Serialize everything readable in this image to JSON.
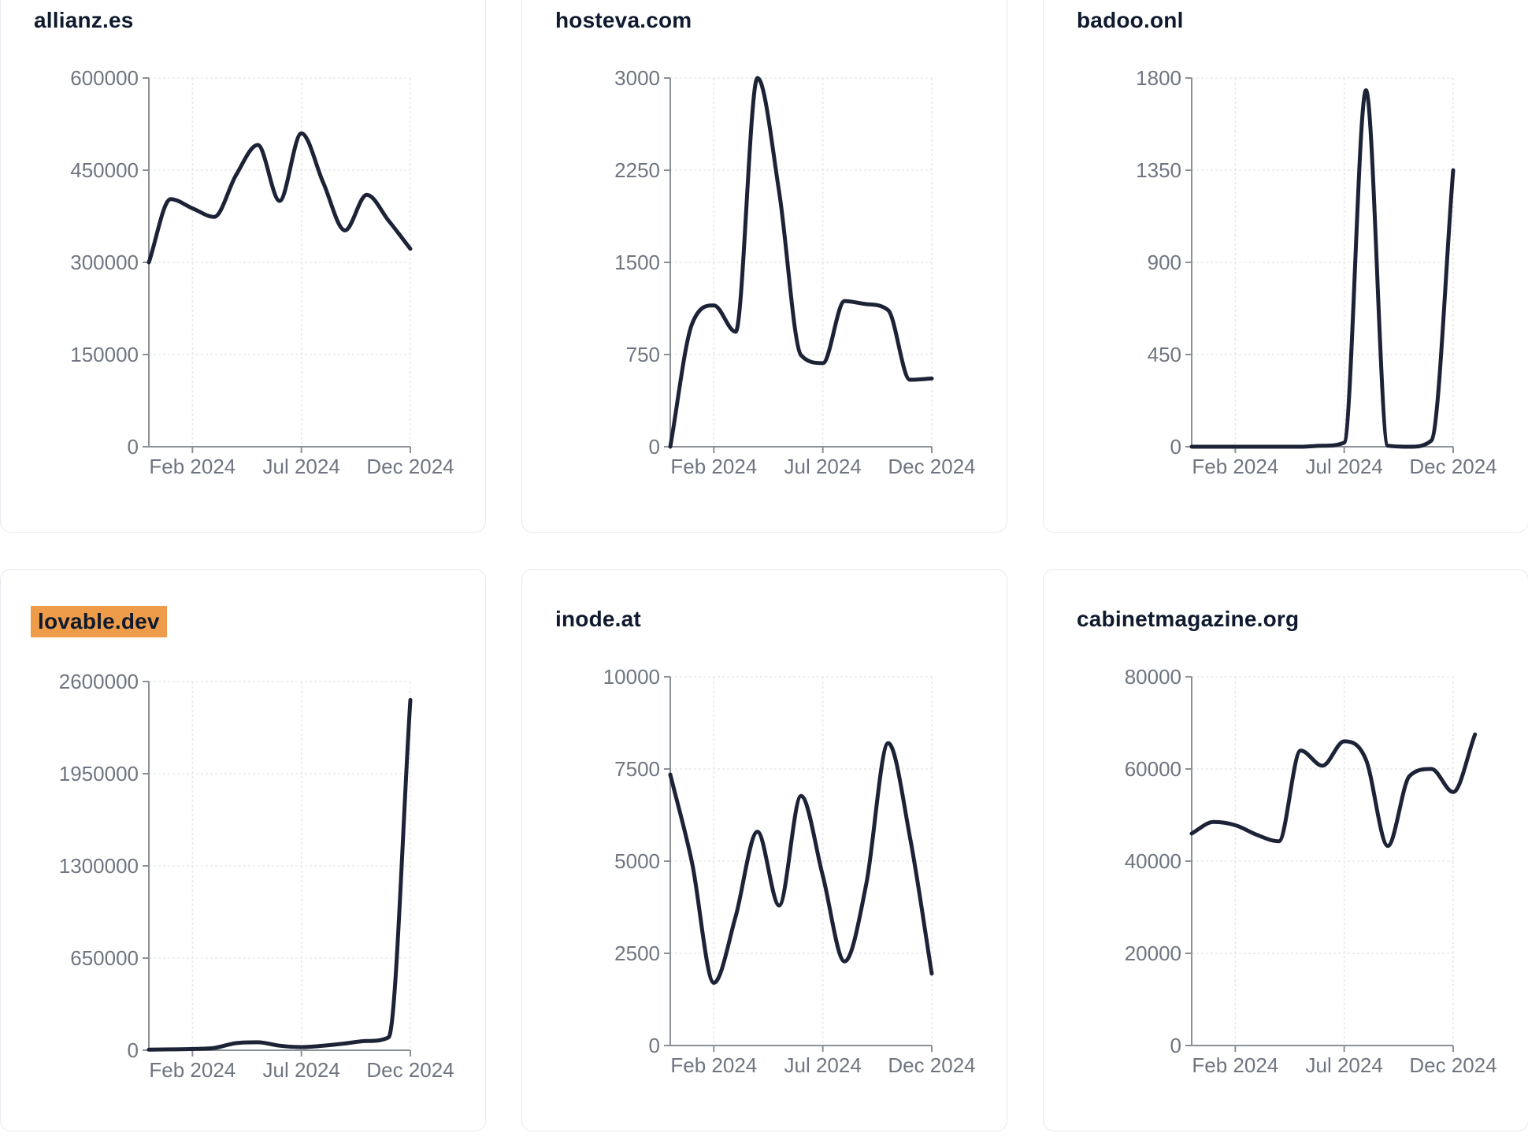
{
  "page": {
    "background": "#ffffff"
  },
  "theme": {
    "line_color": "#1c2337",
    "title_color": "#0f1a2e",
    "axis_color": "#8b9097",
    "tick_label_color": "#6f7580",
    "grid_color": "#e8e8e8",
    "card_border_color": "#e6e9f0",
    "highlight_color": "#ee9c49"
  },
  "chart_data": [
    {
      "type": "line",
      "title": "allianz.es",
      "highlighted": false,
      "x_tick_labels": [
        "Feb 2024",
        "Jul 2024",
        "Dec 2024"
      ],
      "x_tick_indices": [
        2,
        7,
        12
      ],
      "y_ticks": [
        0,
        150000,
        300000,
        450000,
        600000
      ],
      "ylim": [
        0,
        600000
      ],
      "grid": true,
      "values": [
        300000,
        403000,
        388000,
        374000,
        442000,
        491000,
        400000,
        510000,
        430000,
        352000,
        410000,
        368000,
        322000
      ]
    },
    {
      "type": "line",
      "title": "hosteva.com",
      "highlighted": false,
      "x_tick_labels": [
        "Feb 2024",
        "Jul 2024",
        "Dec 2024"
      ],
      "x_tick_indices": [
        2,
        7,
        12
      ],
      "y_ticks": [
        0,
        750,
        1500,
        2250,
        3000
      ],
      "ylim": [
        0,
        3000
      ],
      "grid": true,
      "values": [
        0,
        1000,
        1150,
        935,
        3000,
        2070,
        745,
        680,
        1185,
        1160,
        1110,
        545,
        555
      ]
    },
    {
      "type": "line",
      "title": "badoo.onl",
      "highlighted": false,
      "x_tick_labels": [
        "Feb 2024",
        "Jul 2024",
        "Dec 2024"
      ],
      "x_tick_indices": [
        2,
        7,
        12
      ],
      "y_ticks": [
        0,
        450,
        900,
        1350,
        1800
      ],
      "ylim": [
        0,
        1800
      ],
      "grid": true,
      "values": [
        0,
        0,
        0,
        0,
        0,
        0,
        5,
        20,
        1740,
        5,
        0,
        30,
        1350
      ]
    },
    {
      "type": "line",
      "title": "lovable.dev",
      "highlighted": true,
      "x_tick_labels": [
        "Feb 2024",
        "Jul 2024",
        "Dec 2024"
      ],
      "x_tick_indices": [
        2,
        7,
        12
      ],
      "y_ticks": [
        0,
        650000,
        1300000,
        1950000,
        2600000
      ],
      "ylim": [
        0,
        2600000
      ],
      "grid": true,
      "values": [
        4000,
        6000,
        9000,
        16000,
        50000,
        56000,
        32000,
        22000,
        32000,
        48000,
        65000,
        90000,
        2470000
      ]
    },
    {
      "type": "line",
      "title": "inode.at",
      "highlighted": false,
      "x_tick_labels": [
        "Feb 2024",
        "Jul 2024",
        "Dec 2024"
      ],
      "x_tick_indices": [
        2,
        7,
        12
      ],
      "y_ticks": [
        0,
        2500,
        5000,
        7500,
        10000
      ],
      "ylim": [
        0,
        10000
      ],
      "grid": true,
      "values": [
        7350,
        4950,
        1700,
        3500,
        5800,
        3800,
        6770,
        4600,
        2280,
        4400,
        8200,
        5650,
        1950
      ]
    },
    {
      "type": "line",
      "title": "cabinetmagazine.org",
      "highlighted": false,
      "x_tick_labels": [
        "Feb 2024",
        "Jul 2024",
        "Dec 2024"
      ],
      "x_tick_indices": [
        2,
        7,
        12
      ],
      "y_ticks": [
        0,
        20000,
        40000,
        60000,
        80000
      ],
      "ylim": [
        0,
        80000
      ],
      "grid": true,
      "values": [
        46000,
        48500,
        47800,
        45700,
        44300,
        64000,
        60700,
        66000,
        62000,
        43300,
        58500,
        60000,
        55000,
        67500
      ]
    }
  ]
}
